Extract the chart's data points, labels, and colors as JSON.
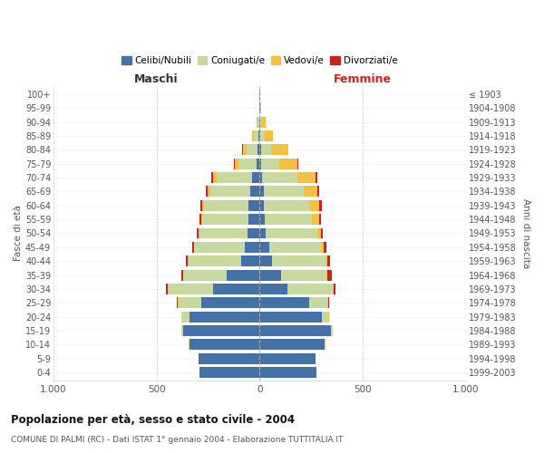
{
  "age_groups": [
    "0-4",
    "5-9",
    "10-14",
    "15-19",
    "20-24",
    "25-29",
    "30-34",
    "35-39",
    "40-44",
    "45-49",
    "50-54",
    "55-59",
    "60-64",
    "65-69",
    "70-74",
    "75-79",
    "80-84",
    "85-89",
    "90-94",
    "95-99",
    "100+"
  ],
  "birth_years": [
    "1999-2003",
    "1994-1998",
    "1989-1993",
    "1984-1988",
    "1979-1983",
    "1974-1978",
    "1969-1973",
    "1964-1968",
    "1959-1963",
    "1954-1958",
    "1949-1953",
    "1944-1948",
    "1939-1943",
    "1934-1938",
    "1929-1933",
    "1924-1928",
    "1919-1923",
    "1914-1918",
    "1909-1913",
    "1904-1908",
    "≤ 1903"
  ],
  "maschi_celibi": [
    290,
    295,
    340,
    370,
    340,
    285,
    225,
    160,
    90,
    70,
    60,
    55,
    55,
    48,
    38,
    15,
    10,
    5,
    2,
    1,
    0
  ],
  "maschi_coniugati": [
    2,
    2,
    4,
    8,
    38,
    110,
    220,
    210,
    255,
    248,
    233,
    224,
    214,
    192,
    170,
    88,
    55,
    22,
    8,
    2,
    0
  ],
  "maschi_vedovi": [
    0,
    0,
    0,
    0,
    1,
    2,
    2,
    2,
    2,
    2,
    3,
    5,
    8,
    12,
    18,
    18,
    18,
    8,
    3,
    0,
    0
  ],
  "maschi_divorziati": [
    0,
    0,
    0,
    0,
    2,
    5,
    8,
    10,
    10,
    8,
    8,
    10,
    10,
    8,
    8,
    2,
    2,
    0,
    0,
    0,
    0
  ],
  "femmine_nubili": [
    275,
    270,
    315,
    345,
    300,
    240,
    135,
    105,
    60,
    45,
    30,
    25,
    22,
    18,
    12,
    8,
    5,
    3,
    1,
    1,
    1
  ],
  "femmine_coniugate": [
    2,
    2,
    4,
    8,
    33,
    88,
    218,
    218,
    258,
    253,
    248,
    230,
    220,
    194,
    172,
    88,
    52,
    20,
    8,
    2,
    0
  ],
  "femmine_vedove": [
    0,
    0,
    0,
    1,
    2,
    4,
    4,
    7,
    9,
    14,
    18,
    32,
    48,
    68,
    88,
    88,
    80,
    40,
    20,
    5,
    0
  ],
  "femmine_divorziate": [
    0,
    0,
    0,
    0,
    2,
    5,
    10,
    20,
    15,
    12,
    12,
    10,
    10,
    10,
    8,
    2,
    2,
    0,
    0,
    0,
    0
  ],
  "color_celibi": "#4472a8",
  "color_coniugati": "#c8d9a0",
  "color_vedovi": "#f5c040",
  "color_divorziati": "#cc2020",
  "legend_labels": [
    "Celibi/Nubili",
    "Coniugati/e",
    "Vedovi/e",
    "Divorziati/e"
  ],
  "xlabel_maschi": "Maschi",
  "xlabel_femmine": "Femmine",
  "ylabel_left": "Fasce di età",
  "ylabel_right": "Anni di nascita",
  "title": "Popolazione per età, sesso e stato civile - 2004",
  "subtitle": "COMUNE DI PALMI (RC) - Dati ISTAT 1° gennaio 2004 - Elaborazione TUTTITALIA.IT",
  "xlim": 1000,
  "xtick_vals": [
    -1000,
    -500,
    0,
    500,
    1000
  ],
  "xtick_labels": [
    "1.000",
    "500",
    "0",
    "500",
    "1.000"
  ],
  "bg_color": "#ffffff",
  "grid_color": "#cccccc",
  "bar_height": 0.78
}
